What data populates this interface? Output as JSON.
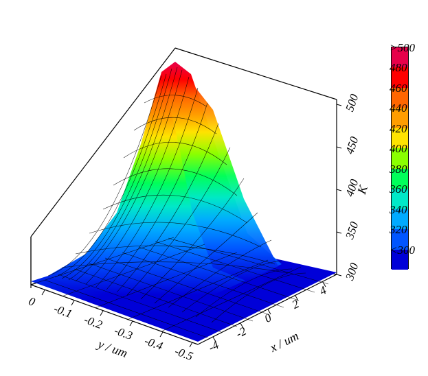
{
  "chart": {
    "type": "surface3d",
    "background_color": "#ffffff",
    "wireframe_color": "#000000",
    "axis_box_color": "#000000",
    "axes": {
      "x": {
        "label": "x / um",
        "ticks": [
          -4,
          -2,
          0,
          2,
          4
        ],
        "range": [
          -5,
          5
        ]
      },
      "y": {
        "label": "y / um",
        "ticks": [
          0.0,
          -0.1,
          -0.2,
          -0.3,
          -0.4,
          -0.5
        ],
        "range": [
          -0.5,
          0.05
        ]
      },
      "z": {
        "label": "K",
        "ticks": [
          300,
          350,
          400,
          450,
          500
        ],
        "range": [
          300,
          530
        ]
      }
    },
    "font": {
      "family": "serif",
      "style": "italic",
      "tick_size_pt": 13,
      "label_size_pt": 14
    },
    "colorbar": {
      "range": [
        300,
        500
      ],
      "below_label": "<300",
      "above_label": ">500",
      "tick_step": 20,
      "ticks": [
        300,
        320,
        340,
        360,
        380,
        400,
        420,
        440,
        460,
        480,
        500
      ],
      "segments": [
        {
          "value": 500,
          "color": "#e7004a",
          "label": ">500"
        },
        {
          "value": 480,
          "color": "#ff0000",
          "label": "480"
        },
        {
          "value": 460,
          "color": "#ff6600",
          "label": "460"
        },
        {
          "value": 440,
          "color": "#ff9d00",
          "label": "440"
        },
        {
          "value": 420,
          "color": "#ffe300",
          "label": "420"
        },
        {
          "value": 400,
          "color": "#8aff00",
          "label": "400"
        },
        {
          "value": 380,
          "color": "#00ff5a",
          "label": "380"
        },
        {
          "value": 360,
          "color": "#00e8c8",
          "label": "360"
        },
        {
          "value": 340,
          "color": "#00aaff",
          "label": "340"
        },
        {
          "value": 320,
          "color": "#0055ff",
          "label": "320"
        },
        {
          "value": 300,
          "color": "#0000d8",
          "label": "<300"
        }
      ]
    },
    "surface_description": "Gaussian-like peak centered near x=0, y=0 rising to ~500K, falling to ~300K baseline across xy plane; dense black wireframe mesh overlay",
    "view": {
      "azimuth_deg": -55,
      "elevation_deg": 28
    }
  }
}
